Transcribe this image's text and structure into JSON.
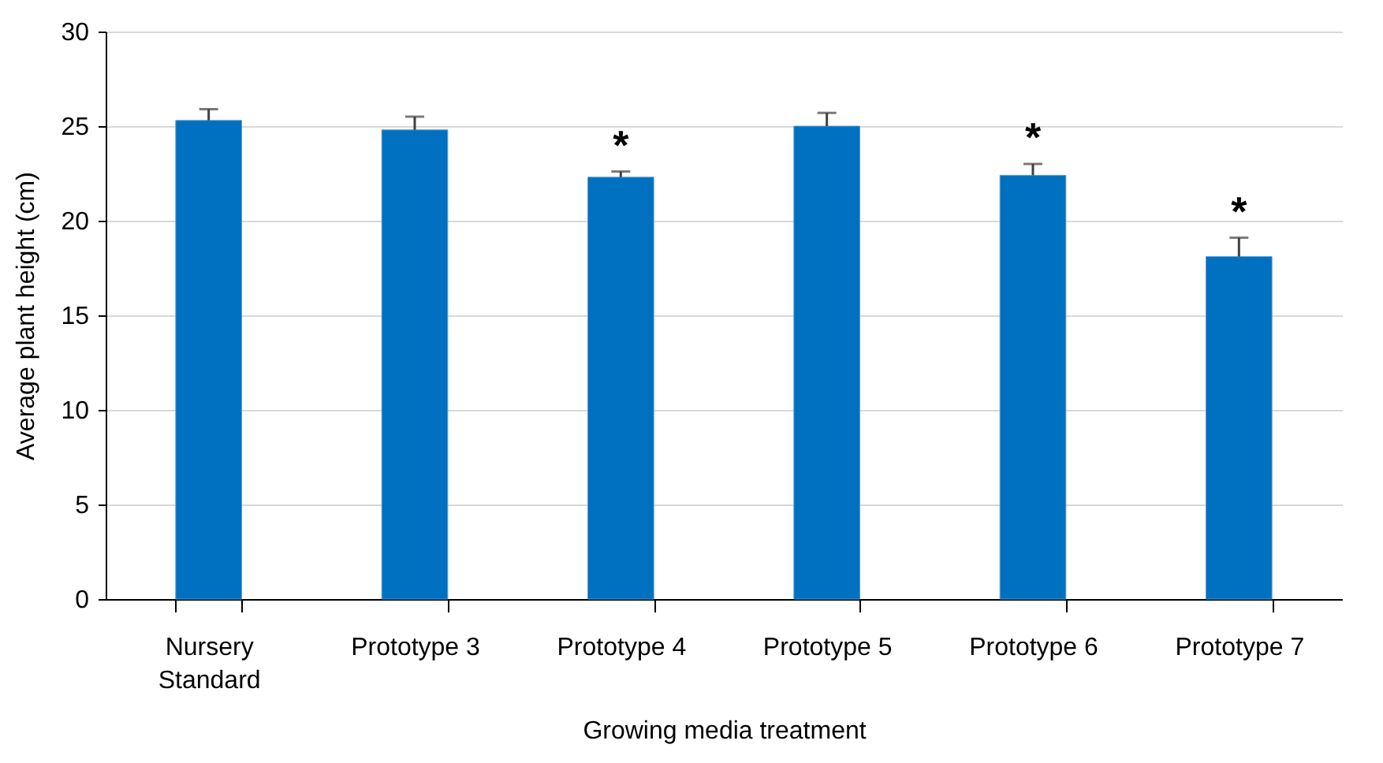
{
  "chart_data": {
    "type": "bar",
    "xlabel": "Growing media treatment",
    "ylabel": "Average plant height (cm)",
    "categories": [
      "Nursery Standard",
      "Prototype 3",
      "Prototype 4",
      "Prototype 5",
      "Prototype 6",
      "Prototype 7"
    ],
    "values": [
      25.3,
      24.8,
      22.3,
      25.0,
      22.4,
      18.1
    ],
    "errors": [
      [
        25.3,
        25.9
      ],
      [
        24.8,
        25.5
      ],
      [
        22.3,
        22.6
      ],
      [
        25.0,
        25.7
      ],
      [
        22.4,
        23.0
      ],
      [
        18.1,
        19.1
      ]
    ],
    "value_labels": [
      null,
      null,
      "*",
      null,
      "*",
      "*"
    ],
    "color": "#0070c0",
    "ylim": [
      0,
      30
    ],
    "yticks": [
      0,
      5,
      10,
      15,
      20,
      25,
      30
    ],
    "grid": "y"
  }
}
